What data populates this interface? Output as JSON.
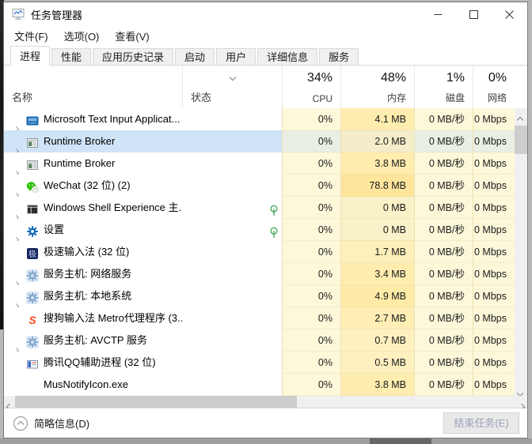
{
  "window": {
    "title": "任务管理器"
  },
  "titlebar_icons": [
    "app-icon",
    "minimize-icon",
    "maximize-icon",
    "close-icon"
  ],
  "menu": {
    "items": [
      "文件(F)",
      "选项(O)",
      "查看(V)"
    ]
  },
  "tabs": [
    {
      "label": "进程",
      "active": true
    },
    {
      "label": "性能",
      "active": false
    },
    {
      "label": "应用历史记录",
      "active": false
    },
    {
      "label": "启动",
      "active": false
    },
    {
      "label": "用户",
      "active": false
    },
    {
      "label": "详细信息",
      "active": false
    },
    {
      "label": "服务",
      "active": false
    }
  ],
  "table": {
    "name_header": "名称",
    "status_header": "状态",
    "value_columns": [
      {
        "key": "cpu",
        "pct": "34%",
        "label": "CPU"
      },
      {
        "key": "mem",
        "pct": "48%",
        "label": "内存"
      },
      {
        "key": "disk",
        "pct": "1%",
        "label": "磁盘"
      },
      {
        "key": "net",
        "pct": "0%",
        "label": "网络"
      }
    ],
    "rows": [
      {
        "name": "Microsoft Text Input Applicat...",
        "icon": "text-input-icon",
        "expandable": true,
        "leaf": false,
        "selected": false,
        "cpu": "0%",
        "mem": "4.1 MB",
        "disk": "0 MB/秒",
        "net": "0 Mbps",
        "mem_bg": "#ffedb0"
      },
      {
        "name": "Runtime Broker",
        "icon": "runtime-broker-icon",
        "expandable": true,
        "leaf": false,
        "selected": true,
        "cpu": "0%",
        "mem": "2.0 MB",
        "disk": "0 MB/秒",
        "net": "0 Mbps",
        "mem_bg": "#f4edca"
      },
      {
        "name": "Runtime Broker",
        "icon": "runtime-broker-icon",
        "expandable": true,
        "leaf": false,
        "selected": false,
        "cpu": "0%",
        "mem": "3.8 MB",
        "disk": "0 MB/秒",
        "net": "0 Mbps",
        "mem_bg": "#ffedb0"
      },
      {
        "name": "WeChat (32 位) (2)",
        "icon": "wechat-icon",
        "expandable": true,
        "leaf": false,
        "selected": false,
        "cpu": "0%",
        "mem": "78.8 MB",
        "disk": "0 MB/秒",
        "net": "0 Mbps",
        "mem_bg": "#ffe59c"
      },
      {
        "name": "Windows Shell Experience 主...",
        "icon": "shell-experience-icon",
        "expandable": true,
        "leaf": true,
        "selected": false,
        "cpu": "0%",
        "mem": "0 MB",
        "disk": "0 MB/秒",
        "net": "0 Mbps",
        "mem_bg": "#f9f1c8"
      },
      {
        "name": "设置",
        "icon": "settings-gear-icon",
        "expandable": true,
        "leaf": true,
        "selected": false,
        "cpu": "0%",
        "mem": "0 MB",
        "disk": "0 MB/秒",
        "net": "0 Mbps",
        "mem_bg": "#f9f1c8"
      },
      {
        "name": "极速输入法 (32 位)",
        "icon": "jisu-ime-icon",
        "expandable": false,
        "leaf": false,
        "selected": false,
        "cpu": "0%",
        "mem": "1.7 MB",
        "disk": "0 MB/秒",
        "net": "0 Mbps",
        "mem_bg": "#ffefba"
      },
      {
        "name": "服务主机: 网络服务",
        "icon": "service-host-icon",
        "expandable": true,
        "leaf": false,
        "selected": false,
        "cpu": "0%",
        "mem": "3.4 MB",
        "disk": "0 MB/秒",
        "net": "0 Mbps",
        "mem_bg": "#ffedb0"
      },
      {
        "name": "服务主机: 本地系统",
        "icon": "service-host-icon",
        "expandable": true,
        "leaf": false,
        "selected": false,
        "cpu": "0%",
        "mem": "4.9 MB",
        "disk": "0 MB/秒",
        "net": "0 Mbps",
        "mem_bg": "#ffeba8"
      },
      {
        "name": "搜狗输入法 Metro代理程序 (3...",
        "icon": "sogou-icon",
        "expandable": false,
        "leaf": false,
        "selected": false,
        "cpu": "0%",
        "mem": "2.7 MB",
        "disk": "0 MB/秒",
        "net": "0 Mbps",
        "mem_bg": "#ffeeb6"
      },
      {
        "name": "服务主机: AVCTP 服务",
        "icon": "service-host-icon",
        "expandable": true,
        "leaf": false,
        "selected": false,
        "cpu": "0%",
        "mem": "0.7 MB",
        "disk": "0 MB/秒",
        "net": "0 Mbps",
        "mem_bg": "#fff0c0"
      },
      {
        "name": "腾讯QQ辅助进程 (32 位)",
        "icon": "qq-helper-icon",
        "expandable": false,
        "leaf": false,
        "selected": false,
        "cpu": "0%",
        "mem": "0.5 MB",
        "disk": "0 MB/秒",
        "net": "0 Mbps",
        "mem_bg": "#fff0c0"
      },
      {
        "name": "MusNotifyIcon.exe",
        "icon": "none",
        "expandable": false,
        "leaf": false,
        "selected": false,
        "cpu": "0%",
        "mem": "3.8 MB",
        "disk": "0 MB/秒",
        "net": "0 Mbps",
        "mem_bg": "#ffedb0"
      }
    ]
  },
  "footer": {
    "toggle_label": "简略信息(D)",
    "end_task_label": "结束任务(E)"
  },
  "theme": {
    "value_cell_bg": "#fdf8da",
    "selected_name_bg": "#cfe4f7",
    "selected_value_bg": "#e9efe2",
    "leaf_green": "#2e9b46",
    "heat_border": "#ece1b2"
  }
}
